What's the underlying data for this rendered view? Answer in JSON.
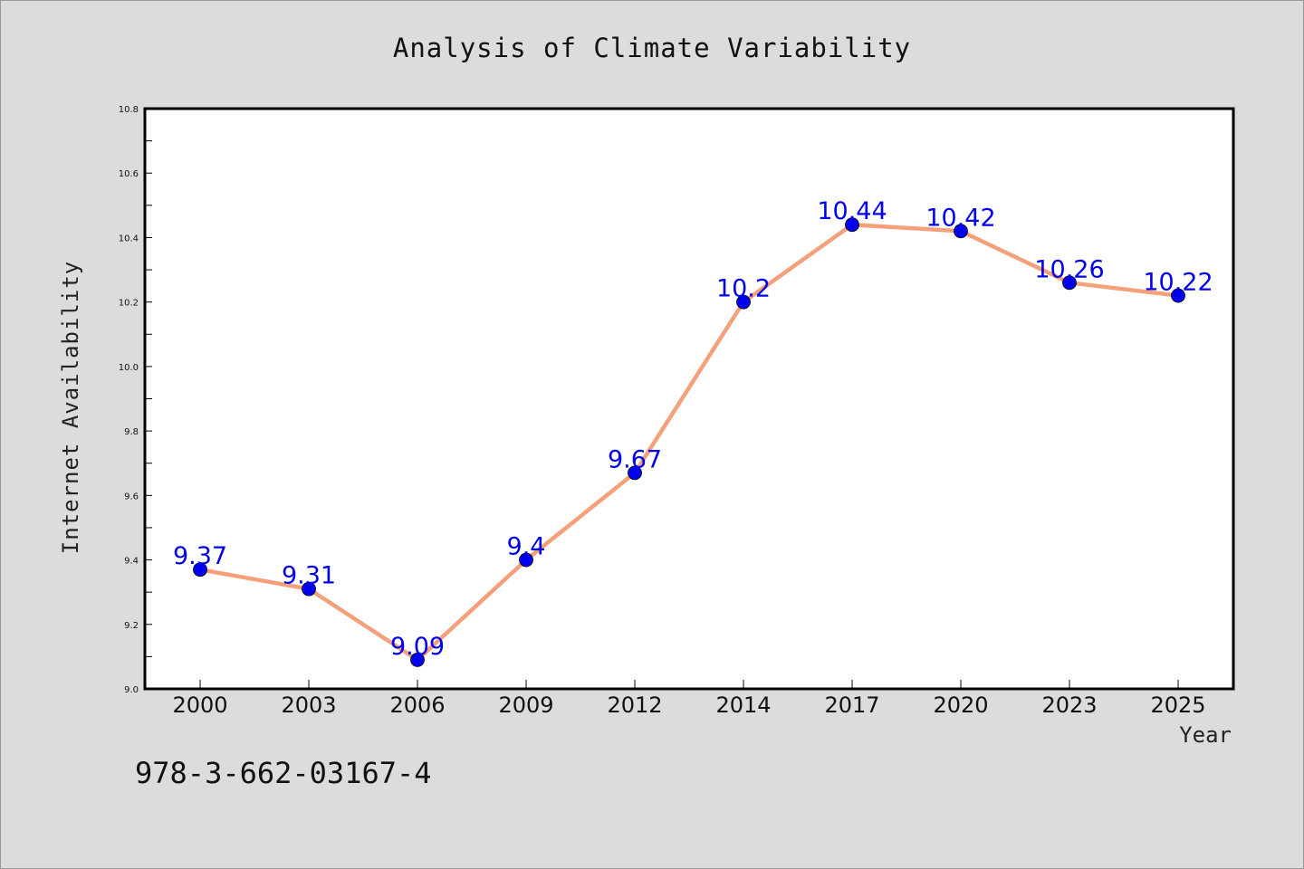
{
  "chart_data": {
    "type": "line",
    "title": "Analysis of Climate Variability",
    "xlabel": "Year",
    "ylabel": "Internet Availability",
    "categories": [
      "2000",
      "2003",
      "2006",
      "2009",
      "2012",
      "2014",
      "2017",
      "2020",
      "2023",
      "2025"
    ],
    "series": [
      {
        "values": [
          9.37,
          9.31,
          9.09,
          9.4,
          9.67,
          10.2,
          10.44,
          10.42,
          10.26,
          10.22
        ],
        "data_labels": [
          "9.37",
          "9.31",
          "9.09",
          "9.4",
          "9.67",
          "10.2",
          "10.44",
          "10.42",
          "10.26",
          "10.22"
        ],
        "line_color": "#f4a07a",
        "marker_color": "#0000ee",
        "label_color": "#0000ee"
      }
    ],
    "ylim": [
      9.0,
      10.8
    ],
    "yticks": [
      "9.0",
      "9.2",
      "9.4",
      "9.6",
      "9.8",
      "10.0",
      "10.2",
      "10.4",
      "10.6",
      "10.8"
    ],
    "grid": false,
    "legend": "none"
  },
  "annotation": {
    "isbn": "978-3-662-03167-4"
  },
  "colors": {
    "figure_background": "#dcdcdc",
    "plot_background": "#ffffff",
    "axes_frame": "#000000"
  }
}
